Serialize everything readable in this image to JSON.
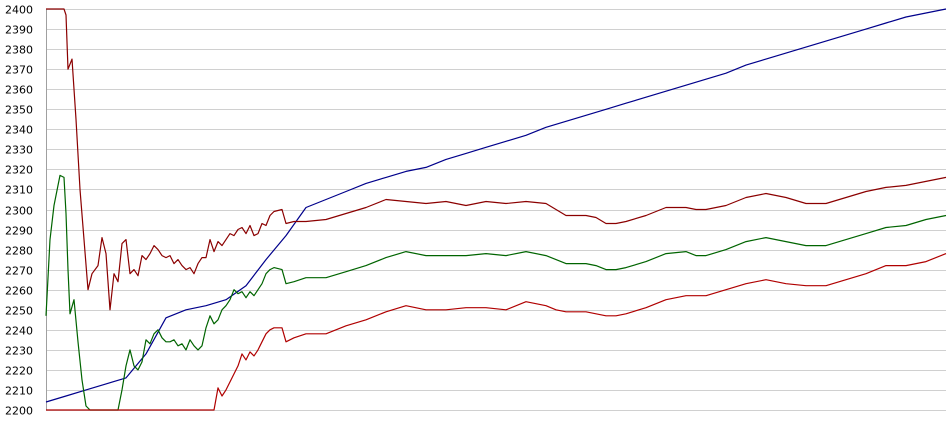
{
  "chart_data": {
    "type": "line",
    "title": "",
    "xlabel": "",
    "ylabel": "",
    "xlim": [
      0,
      450
    ],
    "ylim": [
      2200,
      2400
    ],
    "yticks": [
      2200,
      2210,
      2220,
      2230,
      2240,
      2250,
      2260,
      2270,
      2280,
      2290,
      2300,
      2310,
      2320,
      2330,
      2340,
      2350,
      2360,
      2370,
      2380,
      2390,
      2400
    ],
    "grid": true,
    "legend": "none",
    "series": [
      {
        "color": "#00008b",
        "points": [
          [
            0,
            2204
          ],
          [
            10,
            2207
          ],
          [
            20,
            2210
          ],
          [
            30,
            2213
          ],
          [
            40,
            2216
          ],
          [
            50,
            2228
          ],
          [
            60,
            2246
          ],
          [
            70,
            2250
          ],
          [
            80,
            2252
          ],
          [
            90,
            2255
          ],
          [
            100,
            2262
          ],
          [
            110,
            2275
          ],
          [
            120,
            2287
          ],
          [
            130,
            2301
          ],
          [
            140,
            2305
          ],
          [
            150,
            2309
          ],
          [
            160,
            2313
          ],
          [
            170,
            2316
          ],
          [
            180,
            2319
          ],
          [
            190,
            2321
          ],
          [
            200,
            2325
          ],
          [
            210,
            2328
          ],
          [
            220,
            2331
          ],
          [
            230,
            2334
          ],
          [
            240,
            2337
          ],
          [
            250,
            2341
          ],
          [
            260,
            2344
          ],
          [
            270,
            2347
          ],
          [
            280,
            2350
          ],
          [
            290,
            2353
          ],
          [
            300,
            2356
          ],
          [
            310,
            2359
          ],
          [
            320,
            2362
          ],
          [
            330,
            2365
          ],
          [
            340,
            2368
          ],
          [
            350,
            2372
          ],
          [
            360,
            2375
          ],
          [
            370,
            2378
          ],
          [
            380,
            2381
          ],
          [
            390,
            2384
          ],
          [
            400,
            2387
          ],
          [
            410,
            2390
          ],
          [
            420,
            2393
          ],
          [
            430,
            2396
          ],
          [
            440,
            2398
          ],
          [
            450,
            2400
          ]
        ]
      },
      {
        "color": "#8b0000",
        "points": [
          [
            0,
            2400
          ],
          [
            9,
            2400
          ],
          [
            10,
            2397
          ],
          [
            11,
            2370
          ],
          [
            13,
            2375
          ],
          [
            15,
            2345
          ],
          [
            17,
            2310
          ],
          [
            19,
            2285
          ],
          [
            21,
            2260
          ],
          [
            23,
            2268
          ],
          [
            26,
            2272
          ],
          [
            28,
            2286
          ],
          [
            30,
            2278
          ],
          [
            32,
            2250
          ],
          [
            34,
            2268
          ],
          [
            36,
            2264
          ],
          [
            38,
            2283
          ],
          [
            40,
            2285
          ],
          [
            42,
            2268
          ],
          [
            44,
            2270
          ],
          [
            46,
            2267
          ],
          [
            48,
            2277
          ],
          [
            50,
            2275
          ],
          [
            52,
            2278
          ],
          [
            54,
            2282
          ],
          [
            56,
            2280
          ],
          [
            58,
            2277
          ],
          [
            60,
            2276
          ],
          [
            62,
            2277
          ],
          [
            64,
            2273
          ],
          [
            66,
            2275
          ],
          [
            68,
            2272
          ],
          [
            70,
            2270
          ],
          [
            72,
            2271
          ],
          [
            74,
            2268
          ],
          [
            76,
            2273
          ],
          [
            78,
            2276
          ],
          [
            80,
            2276
          ],
          [
            82,
            2285
          ],
          [
            84,
            2279
          ],
          [
            86,
            2284
          ],
          [
            88,
            2282
          ],
          [
            90,
            2285
          ],
          [
            92,
            2288
          ],
          [
            94,
            2287
          ],
          [
            96,
            2290
          ],
          [
            98,
            2291
          ],
          [
            100,
            2288
          ],
          [
            102,
            2292
          ],
          [
            104,
            2287
          ],
          [
            106,
            2288
          ],
          [
            108,
            2293
          ],
          [
            110,
            2292
          ],
          [
            112,
            2297
          ],
          [
            114,
            2299
          ],
          [
            118,
            2300
          ],
          [
            120,
            2293
          ],
          [
            124,
            2294
          ],
          [
            130,
            2294
          ],
          [
            140,
            2295
          ],
          [
            150,
            2298
          ],
          [
            160,
            2301
          ],
          [
            170,
            2305
          ],
          [
            180,
            2304
          ],
          [
            190,
            2303
          ],
          [
            200,
            2304
          ],
          [
            210,
            2302
          ],
          [
            220,
            2304
          ],
          [
            230,
            2303
          ],
          [
            240,
            2304
          ],
          [
            250,
            2303
          ],
          [
            255,
            2300
          ],
          [
            260,
            2297
          ],
          [
            270,
            2297
          ],
          [
            275,
            2296
          ],
          [
            280,
            2293
          ],
          [
            285,
            2293
          ],
          [
            290,
            2294
          ],
          [
            300,
            2297
          ],
          [
            310,
            2301
          ],
          [
            320,
            2301
          ],
          [
            325,
            2300
          ],
          [
            330,
            2300
          ],
          [
            340,
            2302
          ],
          [
            350,
            2306
          ],
          [
            360,
            2308
          ],
          [
            370,
            2306
          ],
          [
            380,
            2303
          ],
          [
            390,
            2303
          ],
          [
            400,
            2306
          ],
          [
            410,
            2309
          ],
          [
            420,
            2311
          ],
          [
            430,
            2312
          ],
          [
            440,
            2314
          ],
          [
            450,
            2316
          ]
        ]
      },
      {
        "color": "#006400",
        "points": [
          [
            0,
            2247
          ],
          [
            2,
            2285
          ],
          [
            4,
            2302
          ],
          [
            6,
            2312
          ],
          [
            7,
            2317
          ],
          [
            9,
            2316
          ],
          [
            10,
            2298
          ],
          [
            11,
            2270
          ],
          [
            12,
            2248
          ],
          [
            14,
            2255
          ],
          [
            16,
            2234
          ],
          [
            18,
            2215
          ],
          [
            20,
            2202
          ],
          [
            22,
            2200
          ],
          [
            36,
            2200
          ],
          [
            38,
            2210
          ],
          [
            40,
            2222
          ],
          [
            42,
            2230
          ],
          [
            44,
            2222
          ],
          [
            46,
            2220
          ],
          [
            48,
            2224
          ],
          [
            50,
            2235
          ],
          [
            52,
            2233
          ],
          [
            54,
            2238
          ],
          [
            56,
            2240
          ],
          [
            58,
            2236
          ],
          [
            60,
            2234
          ],
          [
            62,
            2234
          ],
          [
            64,
            2235
          ],
          [
            66,
            2232
          ],
          [
            68,
            2233
          ],
          [
            70,
            2230
          ],
          [
            72,
            2235
          ],
          [
            74,
            2232
          ],
          [
            76,
            2230
          ],
          [
            78,
            2232
          ],
          [
            80,
            2241
          ],
          [
            82,
            2247
          ],
          [
            84,
            2243
          ],
          [
            86,
            2245
          ],
          [
            88,
            2250
          ],
          [
            90,
            2252
          ],
          [
            92,
            2255
          ],
          [
            94,
            2260
          ],
          [
            96,
            2258
          ],
          [
            98,
            2259
          ],
          [
            100,
            2256
          ],
          [
            102,
            2259
          ],
          [
            104,
            2257
          ],
          [
            106,
            2260
          ],
          [
            108,
            2263
          ],
          [
            110,
            2268
          ],
          [
            112,
            2270
          ],
          [
            114,
            2271
          ],
          [
            118,
            2270
          ],
          [
            120,
            2263
          ],
          [
            124,
            2264
          ],
          [
            130,
            2266
          ],
          [
            140,
            2266
          ],
          [
            150,
            2269
          ],
          [
            160,
            2272
          ],
          [
            170,
            2276
          ],
          [
            180,
            2279
          ],
          [
            190,
            2277
          ],
          [
            200,
            2277
          ],
          [
            210,
            2277
          ],
          [
            220,
            2278
          ],
          [
            230,
            2277
          ],
          [
            240,
            2279
          ],
          [
            250,
            2277
          ],
          [
            255,
            2275
          ],
          [
            260,
            2273
          ],
          [
            270,
            2273
          ],
          [
            275,
            2272
          ],
          [
            280,
            2270
          ],
          [
            285,
            2270
          ],
          [
            290,
            2271
          ],
          [
            300,
            2274
          ],
          [
            310,
            2278
          ],
          [
            320,
            2279
          ],
          [
            325,
            2277
          ],
          [
            330,
            2277
          ],
          [
            340,
            2280
          ],
          [
            350,
            2284
          ],
          [
            360,
            2286
          ],
          [
            370,
            2284
          ],
          [
            380,
            2282
          ],
          [
            390,
            2282
          ],
          [
            400,
            2285
          ],
          [
            410,
            2288
          ],
          [
            420,
            2291
          ],
          [
            430,
            2292
          ],
          [
            440,
            2295
          ],
          [
            450,
            2297
          ]
        ]
      },
      {
        "color": "#b00000",
        "points": [
          [
            0,
            2200
          ],
          [
            84,
            2200
          ],
          [
            86,
            2211
          ],
          [
            88,
            2207
          ],
          [
            90,
            2210
          ],
          [
            92,
            2214
          ],
          [
            94,
            2218
          ],
          [
            96,
            2222
          ],
          [
            98,
            2228
          ],
          [
            100,
            2225
          ],
          [
            102,
            2229
          ],
          [
            104,
            2227
          ],
          [
            106,
            2230
          ],
          [
            108,
            2234
          ],
          [
            110,
            2238
          ],
          [
            112,
            2240
          ],
          [
            114,
            2241
          ],
          [
            118,
            2241
          ],
          [
            120,
            2234
          ],
          [
            124,
            2236
          ],
          [
            130,
            2238
          ],
          [
            140,
            2238
          ],
          [
            150,
            2242
          ],
          [
            160,
            2245
          ],
          [
            170,
            2249
          ],
          [
            180,
            2252
          ],
          [
            190,
            2250
          ],
          [
            200,
            2250
          ],
          [
            210,
            2251
          ],
          [
            220,
            2251
          ],
          [
            230,
            2250
          ],
          [
            240,
            2254
          ],
          [
            250,
            2252
          ],
          [
            255,
            2250
          ],
          [
            260,
            2249
          ],
          [
            270,
            2249
          ],
          [
            275,
            2248
          ],
          [
            280,
            2247
          ],
          [
            285,
            2247
          ],
          [
            290,
            2248
          ],
          [
            300,
            2251
          ],
          [
            310,
            2255
          ],
          [
            320,
            2257
          ],
          [
            325,
            2257
          ],
          [
            330,
            2257
          ],
          [
            340,
            2260
          ],
          [
            350,
            2263
          ],
          [
            360,
            2265
          ],
          [
            370,
            2263
          ],
          [
            380,
            2262
          ],
          [
            390,
            2262
          ],
          [
            400,
            2265
          ],
          [
            410,
            2268
          ],
          [
            420,
            2272
          ],
          [
            430,
            2272
          ],
          [
            440,
            2274
          ],
          [
            450,
            2278
          ]
        ]
      }
    ]
  }
}
